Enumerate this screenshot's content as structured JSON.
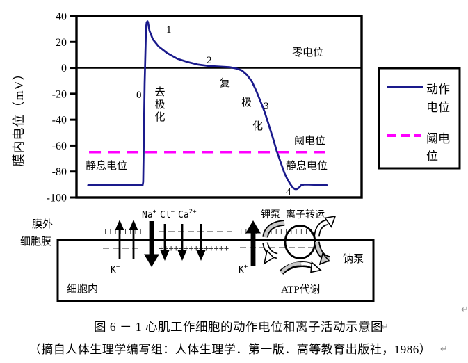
{
  "colors": {
    "action_potential": "#1a1a8c",
    "threshold": "#ff00ff",
    "axis": "#000000",
    "charge_text": "#3c3c3c",
    "dash_gray": "#999999",
    "arrow_gray": "#c8c8c8"
  },
  "chart_data": {
    "type": "line",
    "title": "",
    "ylabel": "膜内电位（mV）",
    "xlabel": "",
    "ylim": [
      -100,
      40
    ],
    "y_ticks": [
      40,
      20,
      0,
      -20,
      -40,
      -60,
      -80,
      -100
    ],
    "grid": false,
    "legend_position": "right-outside-box",
    "reference_lines": {
      "zero_mV": 0,
      "threshold_mV": -65,
      "resting_mV": -90
    },
    "series": [
      {
        "name": "动作电位",
        "style": "solid",
        "color": "#1a1a8c",
        "points": [
          [
            4.1,
            -90.5
          ],
          [
            23.2,
            -90.5
          ],
          [
            23.4,
            -88
          ],
          [
            23.9,
            -12
          ],
          [
            24.4,
            31
          ],
          [
            24.6,
            35
          ],
          [
            24.9,
            36
          ],
          [
            25.1,
            35
          ],
          [
            25.6,
            28.5
          ],
          [
            26.8,
            22
          ],
          [
            28.8,
            16.5
          ],
          [
            31.7,
            11.5
          ],
          [
            35.4,
            7
          ],
          [
            39,
            4.5
          ],
          [
            42.7,
            2.5
          ],
          [
            46.3,
            1.5
          ],
          [
            50,
            1
          ],
          [
            53.7,
            0.5
          ],
          [
            56.1,
            -0.5
          ],
          [
            58,
            -2
          ],
          [
            59.8,
            -5.5
          ],
          [
            61.5,
            -10.5
          ],
          [
            62.9,
            -17
          ],
          [
            64.4,
            -25
          ],
          [
            65.9,
            -33.5
          ],
          [
            67.3,
            -43
          ],
          [
            68.8,
            -53.5
          ],
          [
            70.2,
            -64
          ],
          [
            71.7,
            -73.5
          ],
          [
            72.9,
            -81
          ],
          [
            74.1,
            -86.5
          ],
          [
            75.1,
            -90
          ],
          [
            75.9,
            -92.5
          ],
          [
            76.6,
            -93.5
          ],
          [
            77.3,
            -93.5
          ],
          [
            78,
            -92.5
          ],
          [
            78.8,
            -90.5
          ],
          [
            79.8,
            -90
          ],
          [
            81.5,
            -90
          ],
          [
            87.8,
            -90.5
          ]
        ]
      },
      {
        "name": "阈电位",
        "style": "dashed",
        "color": "#ff00ff",
        "constant_mV": -65,
        "x_range": [
          4.4,
          87.3
        ]
      }
    ]
  },
  "chart_annotations": {
    "zero_potential": "零电位",
    "threshold_potential": "阈电位",
    "resting_left": "静息电位",
    "resting_right": "静息电位",
    "depolarization": [
      "去",
      "极",
      "化"
    ],
    "repolarization": [
      "复",
      "极",
      "化"
    ],
    "phase_0": "0",
    "phase_1": "1",
    "phase_2": "2",
    "phase_3": "3",
    "phase_4": "4"
  },
  "legend": {
    "items": [
      {
        "style": "solid",
        "color": "#1a1a8c",
        "label_line1": "动作",
        "label_line2": "电位"
      },
      {
        "style": "dashed",
        "color": "#ff00ff",
        "label_line1": "阈电",
        "label_line2": "位"
      }
    ]
  },
  "membrane": {
    "outside_label": "膜外",
    "membrane_label": "细胞膜",
    "inside_label": "细胞内",
    "ion_na": "Na",
    "ion_na_sup": "+",
    "ion_cl": "Cl",
    "ion_cl_sup": "−",
    "ion_ca": "Ca",
    "ion_ca_sup": "2+",
    "ion_k_left": "K",
    "ion_k_left_sup": "+",
    "ion_k_pump": "K",
    "ion_k_pump_sup": "+",
    "k_pump_label": "钾泵",
    "ion_transport_label": "离子转运",
    "na_pump_label": "钠泵",
    "atp_label": "ATP代谢",
    "charges_left_top": "++++++++",
    "charges_mid_bottom": "++++++++++++++",
    "charges_right_top": "++++++++++++++++"
  },
  "caption": {
    "line1": "图 6 － 1  心肌工作细胞的动作电位和离子活动示意图",
    "line2": "（摘自人体生理学编写组：人体生理学．第一版．高等教育出版社，1986）",
    "return_mark": "↵"
  }
}
